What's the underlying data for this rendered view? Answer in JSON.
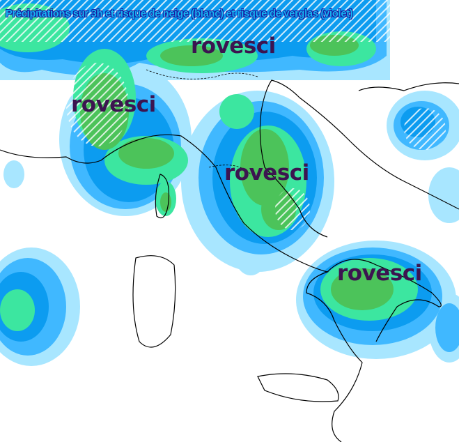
{
  "title": "Précipitations sur 3h et risque de neige (blanc) et risque de verglas (violet)",
  "labels": [
    "rovesci",
    "rovesci",
    "rovesci",
    "rovesci"
  ],
  "colors": {
    "light_rain": "#a8e6ff",
    "moderate_rain": "#40b8ff",
    "heavy_rain": "#0c9cf0",
    "very_heavy": "#3ce6a0",
    "intense": "#4cc35a",
    "label": "#3c1450",
    "coastline": "#000000"
  }
}
